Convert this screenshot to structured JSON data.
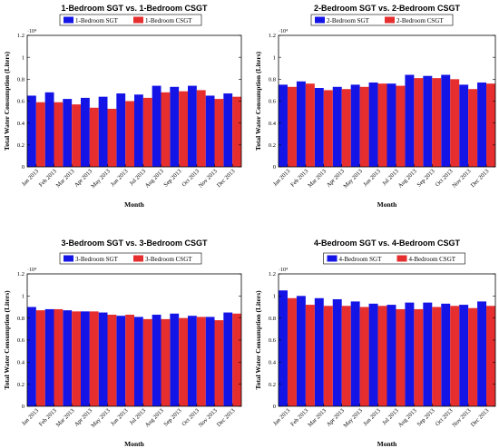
{
  "chart_data": [
    {
      "type": "bar",
      "title": "1-Bedroom SGT vs. 1-Bedroom CSGT",
      "xlabel": "Month",
      "ylabel": "Total Water Consumption (Liters)",
      "exponent_label": "·10⁴",
      "categories": [
        "Jan 2013",
        "Feb 2013",
        "Mar 2013",
        "Apr 2013",
        "May 2013",
        "Jun 2013",
        "Jul 2013",
        "Aug 2013",
        "Sep 2013",
        "Oct 2013",
        "Nov 2013",
        "Dec 2013"
      ],
      "ylim": [
        0,
        1.2
      ],
      "yticks": [
        "0",
        "0.2",
        "0.4",
        "0.6",
        "0.8",
        "1",
        "1.2"
      ],
      "legend": "top-left",
      "series": [
        {
          "name": "1-Bedroom SGT",
          "color": "#1414e6",
          "values": [
            0.65,
            0.68,
            0.62,
            0.63,
            0.64,
            0.67,
            0.66,
            0.74,
            0.73,
            0.74,
            0.65,
            0.67
          ]
        },
        {
          "name": "1-Bedroom CSGT",
          "color": "#e62e2e",
          "values": [
            0.59,
            0.59,
            0.57,
            0.54,
            0.53,
            0.6,
            0.63,
            0.68,
            0.69,
            0.7,
            0.62,
            0.64
          ]
        }
      ]
    },
    {
      "type": "bar",
      "title": "2-Bedroom SGT vs. 2-Bedroom CSGT",
      "xlabel": "Month",
      "ylabel": "Total Water Consumption (Liters)",
      "exponent_label": "·10⁴",
      "categories": [
        "Jan 2013",
        "Feb 2013",
        "Mar 2013",
        "Apr 2013",
        "May 2013",
        "Jun 2013",
        "Jul 2013",
        "Aug 2013",
        "Sep 2013",
        "Oct 2013",
        "Nov 2013",
        "Dec 2013"
      ],
      "ylim": [
        0,
        1.2
      ],
      "yticks": [
        "0",
        "0.2",
        "0.4",
        "0.6",
        "0.8",
        "1",
        "1.2"
      ],
      "legend": "top-left",
      "series": [
        {
          "name": "2-Bedroom SGT",
          "color": "#1414e6",
          "values": [
            0.75,
            0.78,
            0.72,
            0.73,
            0.75,
            0.77,
            0.76,
            0.84,
            0.83,
            0.84,
            0.75,
            0.77
          ]
        },
        {
          "name": "2-Bedroom CSGT",
          "color": "#e62e2e",
          "values": [
            0.73,
            0.76,
            0.7,
            0.71,
            0.73,
            0.76,
            0.74,
            0.81,
            0.81,
            0.8,
            0.71,
            0.76
          ]
        }
      ]
    },
    {
      "type": "bar",
      "title": "3-Bedroom SGT vs. 3-Bedroom CSGT",
      "xlabel": "Month",
      "ylabel": "Total Water Consumption (Liters)",
      "exponent_label": "·10⁴",
      "categories": [
        "Jan 2013",
        "Feb 2013",
        "Mar 2013",
        "Apr 2013",
        "May 2013",
        "Jun 2013",
        "Jul 2013",
        "Aug 2013",
        "Sep 2013",
        "Oct 2013",
        "Nov 2013",
        "Dec 2013"
      ],
      "ylim": [
        0,
        1.2
      ],
      "yticks": [
        "0",
        "0.2",
        "0.4",
        "0.6",
        "0.8",
        "1",
        "1.2"
      ],
      "legend": "top-left",
      "series": [
        {
          "name": "3-Bedroom SGT",
          "color": "#1414e6",
          "values": [
            0.9,
            0.88,
            0.87,
            0.86,
            0.85,
            0.82,
            0.81,
            0.83,
            0.84,
            0.82,
            0.81,
            0.85
          ]
        },
        {
          "name": "3-Bedroom CSGT",
          "color": "#e62e2e",
          "values": [
            0.87,
            0.88,
            0.86,
            0.86,
            0.83,
            0.83,
            0.79,
            0.79,
            0.8,
            0.81,
            0.78,
            0.84
          ]
        }
      ]
    },
    {
      "type": "bar",
      "title": "4-Bedroom SGT vs. 4-Bedroom CSGT",
      "xlabel": "Month",
      "ylabel": "Total Water Consumption (Liters)",
      "exponent_label": "·10⁴",
      "categories": [
        "Jan 2013",
        "Feb 2013",
        "Mar 2013",
        "Apr 2013",
        "May 2013",
        "Jun 2013",
        "Jul 2013",
        "Aug 2013",
        "Sep 2013",
        "Oct 2013",
        "Nov 2013",
        "Dec 2013"
      ],
      "ylim": [
        0,
        1.2
      ],
      "yticks": [
        "0",
        "0.2",
        "0.4",
        "0.6",
        "0.8",
        "1",
        "1.2"
      ],
      "legend": "top-center",
      "series": [
        {
          "name": "4-Bedroom SGT",
          "color": "#1414e6",
          "values": [
            1.05,
            1.0,
            0.98,
            0.97,
            0.95,
            0.93,
            0.92,
            0.94,
            0.94,
            0.93,
            0.92,
            0.95
          ]
        },
        {
          "name": "4-Bedroom CSGT",
          "color": "#e62e2e",
          "values": [
            0.98,
            0.92,
            0.91,
            0.91,
            0.9,
            0.91,
            0.88,
            0.88,
            0.9,
            0.91,
            0.89,
            0.91
          ]
        }
      ]
    }
  ]
}
